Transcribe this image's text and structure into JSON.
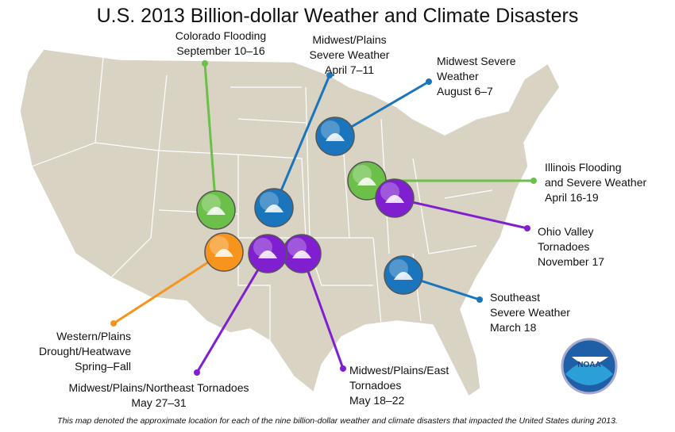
{
  "title": "U.S. 2013 Billion-dollar Weather and Climate Disasters",
  "events": [
    {
      "lines": [
        "Colorado Flooding",
        "September 10–16"
      ],
      "color": "#6cc04a"
    },
    {
      "lines": [
        "Midwest/Plains",
        "Severe Weather",
        "April 7–11"
      ],
      "color": "#1b75bc"
    },
    {
      "lines": [
        "Midwest Severe",
        "Weather",
        "August 6–7"
      ],
      "color": "#1b75bc"
    },
    {
      "lines": [
        "Illinois Flooding",
        "and Severe Weather",
        "April 16-19"
      ],
      "color": "#6cc04a"
    },
    {
      "lines": [
        "Ohio Valley",
        "Tornadoes",
        "November 17"
      ],
      "color": "#7f1fd0"
    },
    {
      "lines": [
        "Southeast",
        "Severe Weather",
        "March 18"
      ],
      "color": "#1b75bc"
    },
    {
      "lines": [
        "Midwest/Plains/East",
        "Tornadoes",
        "May 18–22"
      ],
      "color": "#7f1fd0"
    },
    {
      "lines": [
        "Midwest/Plains/Northeast Tornadoes",
        "May 27–31"
      ],
      "color": "#7f1fd0"
    },
    {
      "lines": [
        "Western/Plains",
        "Drought/Heatwave",
        "Spring–Fall"
      ],
      "color": "#f7941d"
    }
  ],
  "logo": "NOAA",
  "footnote": "This map denoted the approximate location for each of the nine billion-dollar weather and climate disasters that impacted the United States during 2013."
}
